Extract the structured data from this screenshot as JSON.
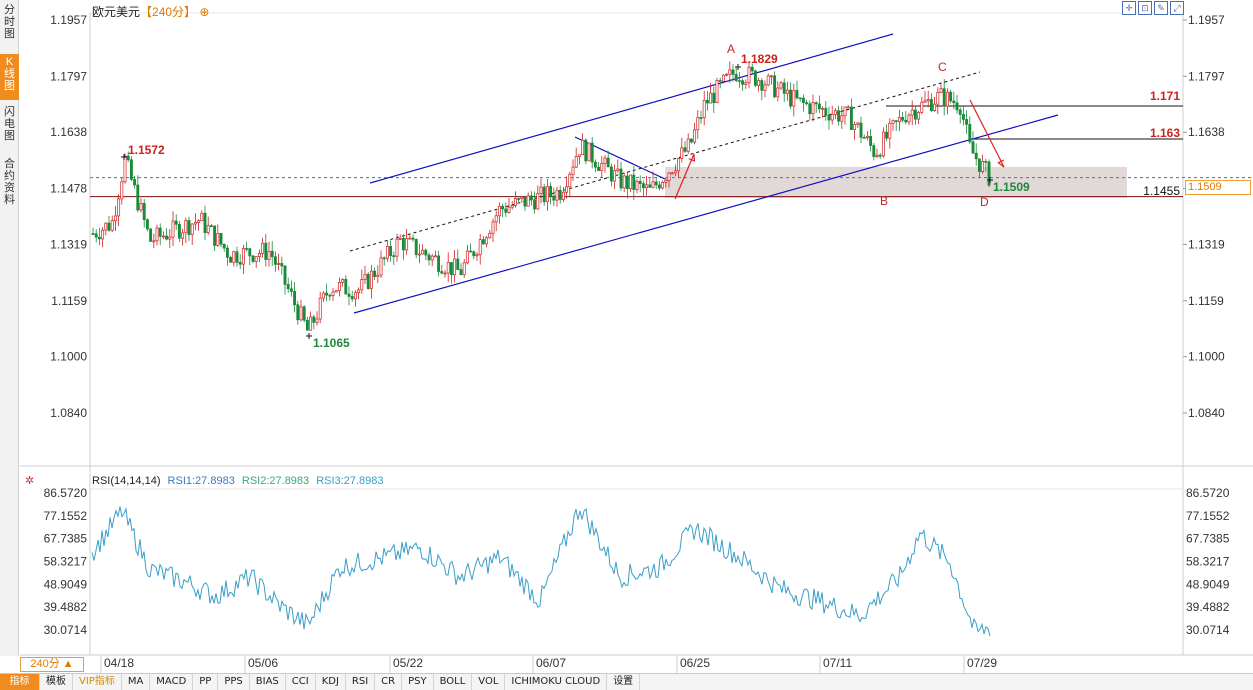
{
  "left_tabs": [
    {
      "label": "分时图",
      "active": false
    },
    {
      "label": "K线图",
      "active": true
    },
    {
      "label": "闪电图",
      "active": false
    },
    {
      "label": "合约资料",
      "active": false
    }
  ],
  "title": {
    "symbol": "欧元美元",
    "period": "【240分】",
    "icon": "plus-circle-icon"
  },
  "toolbar_icons": [
    "crosshair-icon",
    "magnet-icon",
    "draw-icon",
    "fullscreen-icon"
  ],
  "price_axis": {
    "labels": [
      "1.1957",
      "1.1797",
      "1.1638",
      "1.1478",
      "1.1319",
      "1.1159",
      "1.1000",
      "1.0840"
    ],
    "values": [
      1.1957,
      1.1797,
      1.1638,
      1.1478,
      1.1319,
      1.1159,
      1.1,
      1.084
    ],
    "current_price": "1.1509",
    "support_label": "1.1455"
  },
  "annotations": {
    "high_label": "1.1829",
    "early_high_label": "1.1572",
    "low_label": "1.1065",
    "last_label": "1.1509",
    "level1": "1.171",
    "level2": "1.163",
    "points": [
      "A",
      "B",
      "C",
      "D"
    ]
  },
  "rsi": {
    "name": "RSI(14,14,14)",
    "rsi1": "RSI1:27.8983",
    "rsi2": "RSI2:27.8983",
    "rsi3": "RSI3:27.8983",
    "labels": [
      "86.5720",
      "77.1552",
      "67.7385",
      "58.3217",
      "48.9049",
      "39.4882",
      "30.0714"
    ],
    "values": [
      86.572,
      77.1552,
      67.7385,
      58.3217,
      48.9049,
      39.4882,
      30.0714
    ]
  },
  "dates": [
    "04/18",
    "05/06",
    "05/22",
    "06/07",
    "06/25",
    "07/11",
    "07/29"
  ],
  "period_selector": "240分 ▲",
  "bottom_tabs": [
    "指标",
    "模板",
    "VIP指标",
    "MA",
    "MACD",
    "PP",
    "PPS",
    "BIAS",
    "CCI",
    "KDJ",
    "RSI",
    "CR",
    "PSY",
    "BOLL",
    "VOL",
    "ICHIMOKU CLOUD",
    "设置"
  ],
  "colors": {
    "up": "#d02020",
    "down": "#1a8a3a",
    "channel": "#1010c0",
    "rsi_line": "#3a9ec8",
    "accent": "#f08c1e"
  }
}
